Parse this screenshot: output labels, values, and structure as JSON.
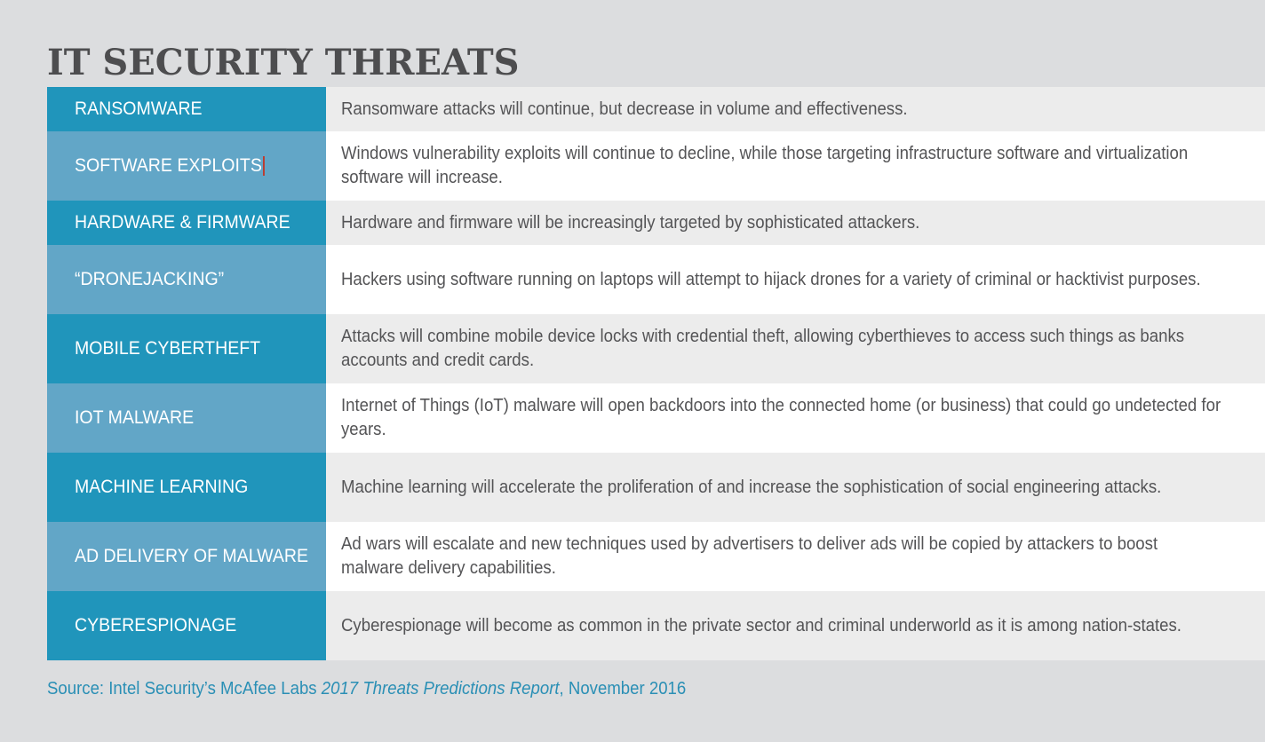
{
  "title": "IT SECURITY THREATS",
  "rows": [
    {
      "label": "RANSOMWARE",
      "description": "Ransomware attacks will continue, but decrease in volume and effectiveness."
    },
    {
      "label": "SOFTWARE EXPLOITS",
      "description": "Windows vulnerability exploits will continue to decline, while those targeting infrastructure software and virtualization software will increase."
    },
    {
      "label": "HARDWARE & FIRMWARE",
      "description": "Hardware and firmware will be increasingly targeted by sophisticated attackers."
    },
    {
      "label": "“DRONEJACKING”",
      "description": "Hackers using software running on laptops will attempt to hijack drones for a variety of criminal or hacktivist purposes."
    },
    {
      "label": "MOBILE CYBERTHEFT",
      "description": "Attacks will combine mobile device locks with credential theft, allowing cyberthieves to access such things as banks accounts and credit cards."
    },
    {
      "label": "IOT MALWARE",
      "description": "Internet of Things (IoT) malware will open backdoors into the connected home (or business) that could go undetected for years."
    },
    {
      "label": "MACHINE LEARNING",
      "description": "Machine learning will accelerate the proliferation of and increase the sophistication of social engineering attacks."
    },
    {
      "label": "AD DELIVERY OF MALWARE",
      "description": "Ad wars will escalate and new techniques used by advertisers to deliver ads will be copied by attackers to boost malware delivery capabilities."
    },
    {
      "label": "CYBERESPIONAGE",
      "description": "Cyberespionage will become as common in the private sector and criminal underworld as it is among nation-states."
    }
  ],
  "source": {
    "prefix": "Source: Intel Security’s McAfee Labs ",
    "report": "2017 Threats Predictions Report",
    "suffix": ", November 2016"
  },
  "colors": {
    "label_dark": "#2095bb",
    "label_light": "#62a6c7",
    "row_grey": "#ececec",
    "row_white": "#ffffff",
    "source_text": "#2a8fb5",
    "title_text": "#4d4d4f"
  }
}
